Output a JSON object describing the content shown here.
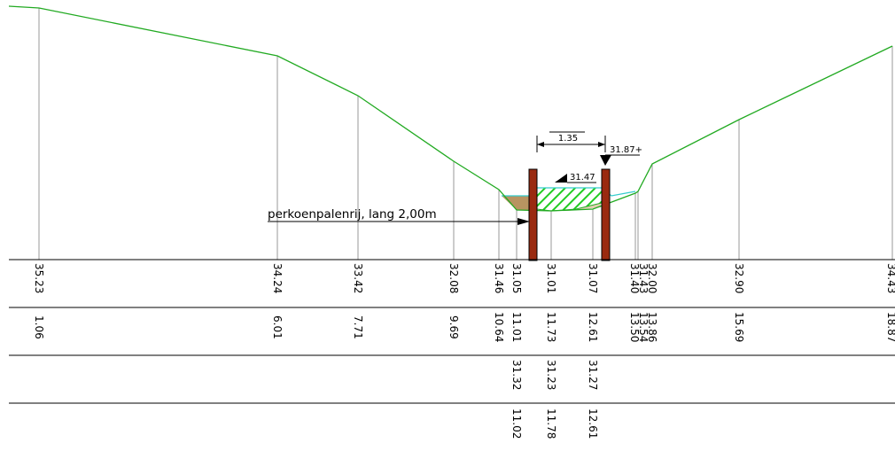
{
  "annotation": {
    "label": "perkoenpalenrij, lang 2,00m",
    "spacing": "1.35",
    "level_right": "31.87+",
    "level_center": "31.47"
  },
  "rows": {
    "ground_level": [
      "35.23",
      "34.24",
      "33.42",
      "32.08",
      "31.46",
      "31.05",
      "31.01",
      "31.07",
      "31.40",
      "31.43",
      "32.00",
      "32.90",
      "34.43"
    ],
    "ground_distance": [
      "1.06",
      "6.01",
      "7.71",
      "9.69",
      "10.64",
      "11.01",
      "11.73",
      "12.61",
      "13.50",
      "13.54",
      "13.86",
      "15.69",
      "18.87"
    ],
    "bed_level": [
      "31.32",
      "31.23",
      "31.27"
    ],
    "bed_distance": [
      "11.02",
      "11.78",
      "12.61"
    ]
  },
  "colors": {
    "terrain": "#22aa22",
    "water": "#33cccc",
    "sediment": "#b08850",
    "pile": "#9a2a10",
    "hatch": "#22cc22",
    "grid": "#000000",
    "station": "#999999"
  }
}
